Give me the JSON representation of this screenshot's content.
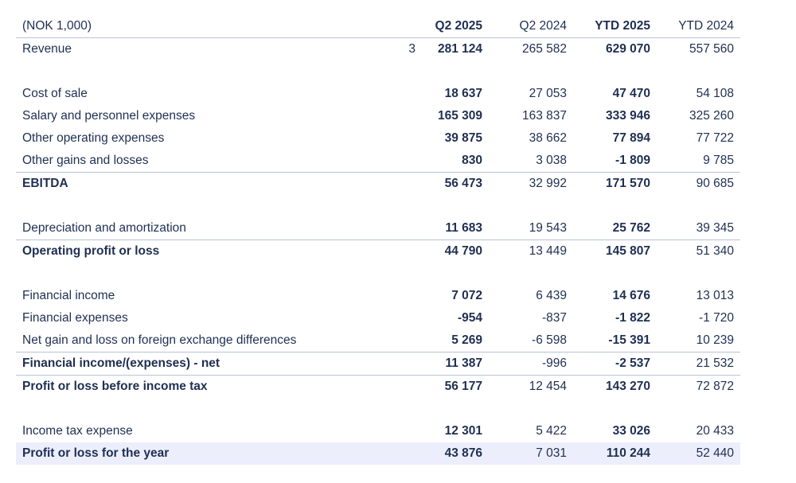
{
  "table": {
    "headers": {
      "unit": "(NOK 1,000)",
      "q2_2025": "Q2 2025",
      "q2_2024": "Q2 2024",
      "ytd_2025": "YTD 2025",
      "ytd_2024": "YTD 2024"
    },
    "rows": [
      {
        "label": "Revenue",
        "note": "3",
        "q2_2025": "281 124",
        "q2_2024": "265 582",
        "ytd_2025": "629 070",
        "ytd_2024": "557 560"
      },
      {
        "label": "Cost of sale",
        "note": "",
        "q2_2025": "18 637",
        "q2_2024": "27 053",
        "ytd_2025": "47 470",
        "ytd_2024": "54 108"
      },
      {
        "label": "Salary and personnel expenses",
        "note": "",
        "q2_2025": "165 309",
        "q2_2024": "163 837",
        "ytd_2025": "333 946",
        "ytd_2024": "325 260"
      },
      {
        "label": "Other operating expenses",
        "note": "",
        "q2_2025": "39 875",
        "q2_2024": "38 662",
        "ytd_2025": "77 894",
        "ytd_2024": "77 722"
      },
      {
        "label": "Other gains and losses",
        "note": "",
        "q2_2025": "830",
        "q2_2024": "3 038",
        "ytd_2025": "-1 809",
        "ytd_2024": "9 785"
      },
      {
        "label": "EBITDA",
        "note": "",
        "q2_2025": "56 473",
        "q2_2024": "32 992",
        "ytd_2025": "171 570",
        "ytd_2024": "90 685"
      },
      {
        "label": "Depreciation and amortization",
        "note": "",
        "q2_2025": "11 683",
        "q2_2024": "19 543",
        "ytd_2025": "25 762",
        "ytd_2024": "39 345"
      },
      {
        "label": "Operating profit or loss",
        "note": "",
        "q2_2025": "44 790",
        "q2_2024": "13 449",
        "ytd_2025": "145 807",
        "ytd_2024": "51 340"
      },
      {
        "label": "Financial income",
        "note": "",
        "q2_2025": "7 072",
        "q2_2024": "6 439",
        "ytd_2025": "14 676",
        "ytd_2024": "13 013"
      },
      {
        "label": "Financial expenses",
        "note": "",
        "q2_2025": "-954",
        "q2_2024": "-837",
        "ytd_2025": "-1 822",
        "ytd_2024": "-1 720"
      },
      {
        "label": "Net gain and loss on foreign exchange differences",
        "note": "",
        "q2_2025": "5 269",
        "q2_2024": "-6 598",
        "ytd_2025": "-15 391",
        "ytd_2024": "10 239"
      },
      {
        "label": "Financial income/(expenses) - net",
        "note": "",
        "q2_2025": "11 387",
        "q2_2024": "-996",
        "ytd_2025": "-2 537",
        "ytd_2024": "21 532"
      },
      {
        "label": "Profit or loss before income tax",
        "note": "",
        "q2_2025": "56 177",
        "q2_2024": "12 454",
        "ytd_2025": "143 270",
        "ytd_2024": "72 872"
      },
      {
        "label": "Income tax expense",
        "note": "",
        "q2_2025": "12 301",
        "q2_2024": "5 422",
        "ytd_2025": "33 026",
        "ytd_2024": "20 433"
      },
      {
        "label": "Profit or loss for the year",
        "note": "",
        "q2_2025": "43 876",
        "q2_2024": "7 031",
        "ytd_2025": "110 244",
        "ytd_2024": "52 440"
      }
    ]
  },
  "colors": {
    "text": "#1f2f52",
    "rule": "#b9c3d6",
    "highlight_row": "#eceefc"
  }
}
